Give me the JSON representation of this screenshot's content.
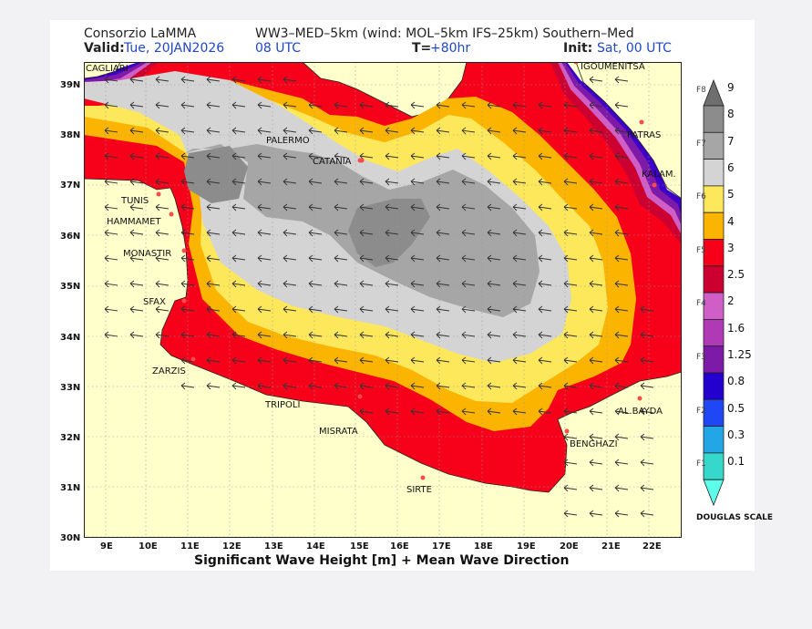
{
  "header": {
    "org": "Consorzio LaMMA",
    "model": "WW3–MED–5km (wind: MOL–5km IFS–25km) Southern–Med",
    "valid_label": "Valid:",
    "valid_date": "Tue, 20JAN2026",
    "valid_time": "08 UTC",
    "lead_label": "T=",
    "lead_value": "+80hr",
    "init_label": "Init:",
    "init_value": "Sat, 00 UTC"
  },
  "footer": {
    "title": "Significant Wave Height [m] + Mean Wave Direction"
  },
  "axes": {
    "lon_ticks": [
      "9E",
      "10E",
      "11E",
      "12E",
      "13E",
      "14E",
      "15E",
      "16E",
      "17E",
      "18E",
      "19E",
      "20E",
      "21E",
      "22E"
    ],
    "lat_ticks": [
      "39N",
      "38N",
      "37N",
      "36N",
      "35N",
      "34N",
      "33N",
      "32N",
      "31N",
      "30N"
    ]
  },
  "cities": [
    {
      "name": "CAGLIARI"
    },
    {
      "name": "IGOUMENITSA"
    },
    {
      "name": "PALERMO"
    },
    {
      "name": "PATRAS"
    },
    {
      "name": "CATANIA"
    },
    {
      "name": "KALAM."
    },
    {
      "name": "TUNIS"
    },
    {
      "name": "HAMMAMET"
    },
    {
      "name": "MONASTIR"
    },
    {
      "name": "SFAX"
    },
    {
      "name": "ZARZIS"
    },
    {
      "name": "TRIPOLI"
    },
    {
      "name": "MISRATA"
    },
    {
      "name": "AL.BAYDA"
    },
    {
      "name": "BENGHAZI"
    },
    {
      "name": "SIRTE"
    }
  ],
  "colorbar": {
    "levels": [
      "9",
      "8",
      "7",
      "6",
      "5",
      "4",
      "3",
      "2.5",
      "2",
      "1.6",
      "1.25",
      "0.8",
      "0.5",
      "0.3",
      "0.1"
    ],
    "colors": [
      "#8c8c8c",
      "#a6a6a6",
      "#d4d4d4",
      "#fde85b",
      "#fbb400",
      "#f7001a",
      "#cc0030",
      "#cf5ec7",
      "#b03ab5",
      "#7d1aa7",
      "#2400d0",
      "#1f47f5",
      "#23a6e6",
      "#36d8cc",
      "#5effea"
    ],
    "douglas": [
      "F8",
      "F7",
      "F6",
      "F5",
      "F4",
      "F3",
      "F2",
      "F1"
    ],
    "scale_title": "DOUGLAS SCALE"
  }
}
